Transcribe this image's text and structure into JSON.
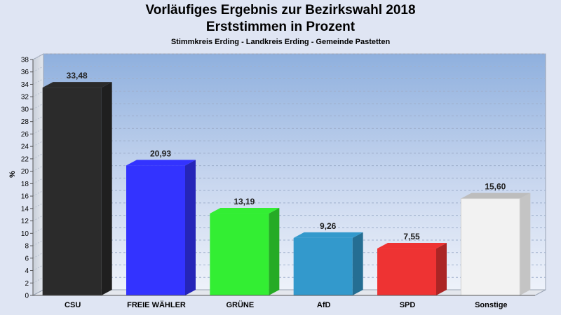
{
  "chart_data": {
    "type": "bar",
    "title": "Vorläufiges Ergebnis zur Bezirkswahl 2018",
    "subtitle_main": "Erststimmen in Prozent",
    "subtitle": "Stimmkreis Erding - Landkreis Erding - Gemeinde Pastetten",
    "ylabel": "%",
    "xlabel": "",
    "ylim": [
      0,
      38
    ],
    "yticks": [
      0,
      2,
      4,
      6,
      8,
      10,
      12,
      14,
      16,
      18,
      20,
      22,
      24,
      26,
      28,
      30,
      32,
      34,
      36,
      38
    ],
    "grid": true,
    "categories": [
      "CSU",
      "FREIE WÄHLER",
      "GRÜNE",
      "AfD",
      "SPD",
      "Sonstige"
    ],
    "values": [
      33.48,
      20.93,
      13.19,
      9.26,
      7.55,
      15.6
    ],
    "value_labels": [
      "33,48",
      "20,93",
      "13,19",
      "9,26",
      "7,55",
      "15,60"
    ],
    "colors": [
      "#2b2b2b",
      "#3333ff",
      "#33ee33",
      "#3399cc",
      "#ee3333",
      "#f2f2f2"
    ]
  }
}
